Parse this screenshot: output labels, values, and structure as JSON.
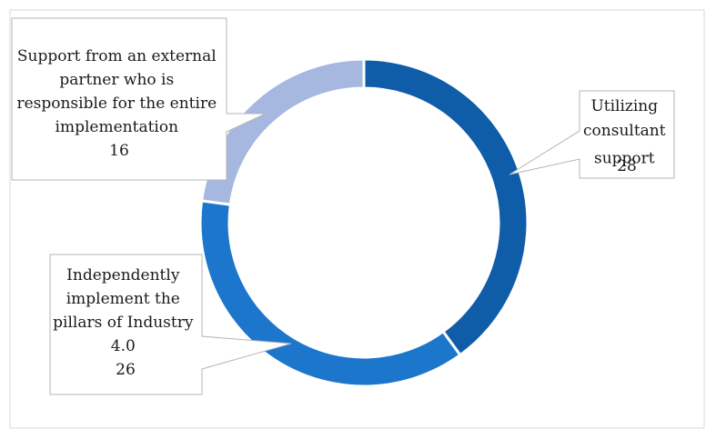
{
  "chart_data": {
    "type": "pie",
    "variant": "doughnut",
    "title": "",
    "slices": [
      {
        "label_lines": [
          "Utilizing",
          "consultant",
          "support"
        ],
        "value": 28,
        "value_text": "28",
        "color": "#0f5ca8"
      },
      {
        "label_lines": [
          "Independently",
          "implement the",
          "pillars of Industry",
          "4.0"
        ],
        "value": 26,
        "value_text": "26",
        "color": "#1c76cc"
      },
      {
        "label_lines": [
          "Support from an external",
          "partner who is",
          "responsible for the entire",
          "implementation"
        ],
        "value": 16,
        "value_text": "16",
        "color": "#a6b8e0"
      }
    ],
    "colors": {
      "slice_border": "#ffffff",
      "callout_border": "#b4b4b4",
      "frame_border": "#d9d9d9"
    }
  }
}
